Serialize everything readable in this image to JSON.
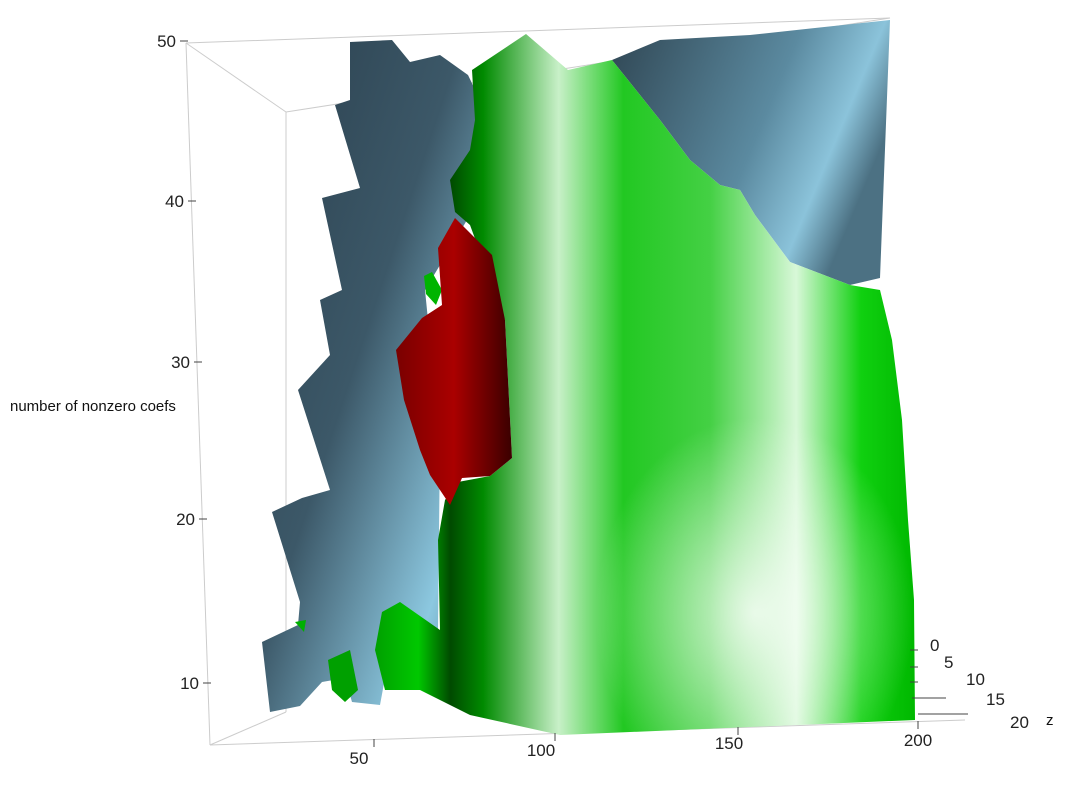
{
  "chart_data": {
    "type": "surface3d",
    "title": "",
    "xlabel": "",
    "ylabel": "number of nonzero coefs",
    "zlabel": "z",
    "x_ticks": [
      50,
      100,
      150,
      200
    ],
    "y_ticks": [
      10,
      20,
      30,
      40,
      50
    ],
    "z_ticks": [
      0,
      5,
      10,
      15,
      20
    ],
    "xlim": [
      0,
      200
    ],
    "ylim": [
      7,
      50
    ],
    "zlim": [
      0,
      20
    ],
    "grid": false,
    "surfaces": [
      {
        "color": "#5f8aa0",
        "label": ""
      },
      {
        "color": "#00cc00",
        "label": ""
      },
      {
        "color": "#8b0000",
        "label": ""
      }
    ]
  }
}
